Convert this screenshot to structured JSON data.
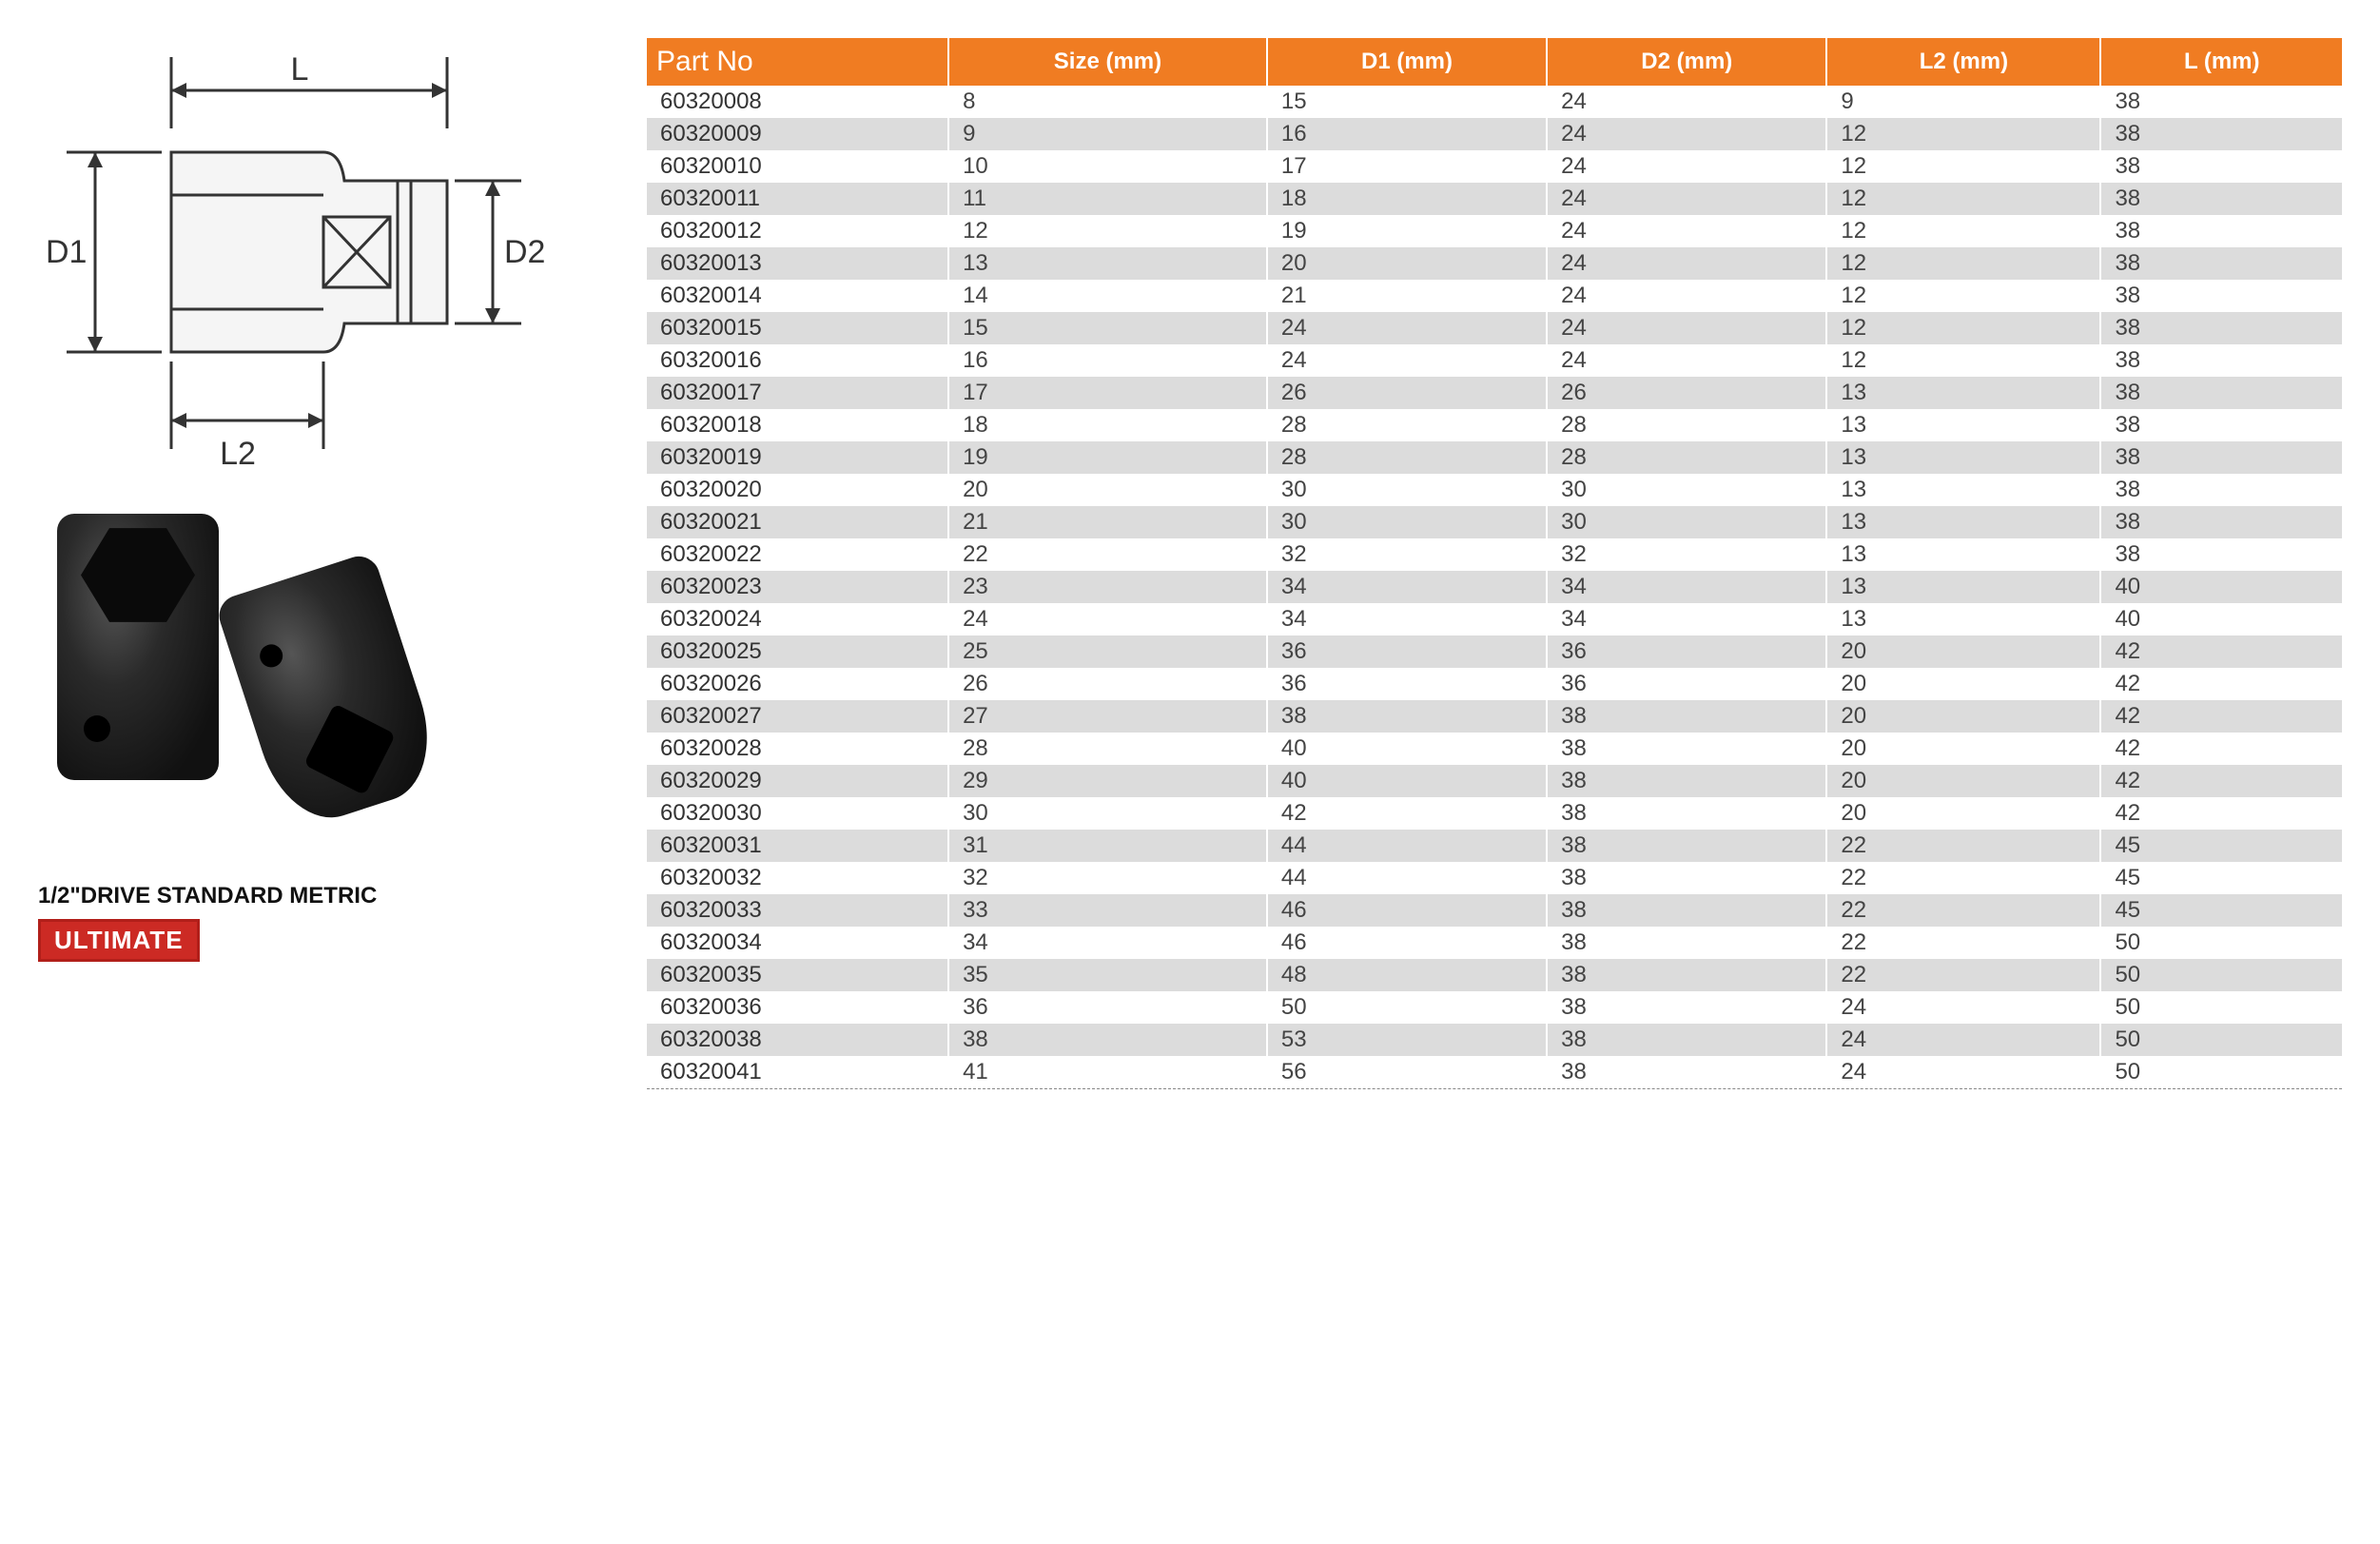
{
  "diagram": {
    "label_L": "L",
    "label_L2": "L2",
    "label_D1": "D1",
    "label_D2": "D2"
  },
  "caption": "1/2\"DRIVE STANDARD METRIC",
  "badge": "ULTIMATE",
  "table": {
    "header_bg": "#f07c22",
    "header_fg": "#ffffff",
    "row_alt_bg": "#dcdcdc",
    "columns": [
      "Part No",
      "Size (mm)",
      "D1 (mm)",
      "D2 (mm)",
      "L2 (mm)",
      "L (mm)"
    ],
    "rows": [
      [
        "60320008",
        "8",
        "15",
        "24",
        "9",
        "38"
      ],
      [
        "60320009",
        "9",
        "16",
        "24",
        "12",
        "38"
      ],
      [
        "60320010",
        "10",
        "17",
        "24",
        "12",
        "38"
      ],
      [
        "60320011",
        "11",
        "18",
        "24",
        "12",
        "38"
      ],
      [
        "60320012",
        "12",
        "19",
        "24",
        "12",
        "38"
      ],
      [
        "60320013",
        "13",
        "20",
        "24",
        "12",
        "38"
      ],
      [
        "60320014",
        "14",
        "21",
        "24",
        "12",
        "38"
      ],
      [
        "60320015",
        "15",
        "24",
        "24",
        "12",
        "38"
      ],
      [
        "60320016",
        "16",
        "24",
        "24",
        "12",
        "38"
      ],
      [
        "60320017",
        "17",
        "26",
        "26",
        "13",
        "38"
      ],
      [
        "60320018",
        "18",
        "28",
        "28",
        "13",
        "38"
      ],
      [
        "60320019",
        "19",
        "28",
        "28",
        "13",
        "38"
      ],
      [
        "60320020",
        "20",
        "30",
        "30",
        "13",
        "38"
      ],
      [
        "60320021",
        "21",
        "30",
        "30",
        "13",
        "38"
      ],
      [
        "60320022",
        "22",
        "32",
        "32",
        "13",
        "38"
      ],
      [
        "60320023",
        "23",
        "34",
        "34",
        "13",
        "40"
      ],
      [
        "60320024",
        "24",
        "34",
        "34",
        "13",
        "40"
      ],
      [
        "60320025",
        "25",
        "36",
        "36",
        "20",
        "42"
      ],
      [
        "60320026",
        "26",
        "36",
        "36",
        "20",
        "42"
      ],
      [
        "60320027",
        "27",
        "38",
        "38",
        "20",
        "42"
      ],
      [
        "60320028",
        "28",
        "40",
        "38",
        "20",
        "42"
      ],
      [
        "60320029",
        "29",
        "40",
        "38",
        "20",
        "42"
      ],
      [
        "60320030",
        "30",
        "42",
        "38",
        "20",
        "42"
      ],
      [
        "60320031",
        "31",
        "44",
        "38",
        "22",
        "45"
      ],
      [
        "60320032",
        "32",
        "44",
        "38",
        "22",
        "45"
      ],
      [
        "60320033",
        "33",
        "46",
        "38",
        "22",
        "45"
      ],
      [
        "60320034",
        "34",
        "46",
        "38",
        "22",
        "50"
      ],
      [
        "60320035",
        "35",
        "48",
        "38",
        "22",
        "50"
      ],
      [
        "60320036",
        "36",
        "50",
        "38",
        "24",
        "50"
      ],
      [
        "60320038",
        "38",
        "53",
        "38",
        "24",
        "50"
      ],
      [
        "60320041",
        "41",
        "56",
        "38",
        "24",
        "50"
      ]
    ]
  }
}
